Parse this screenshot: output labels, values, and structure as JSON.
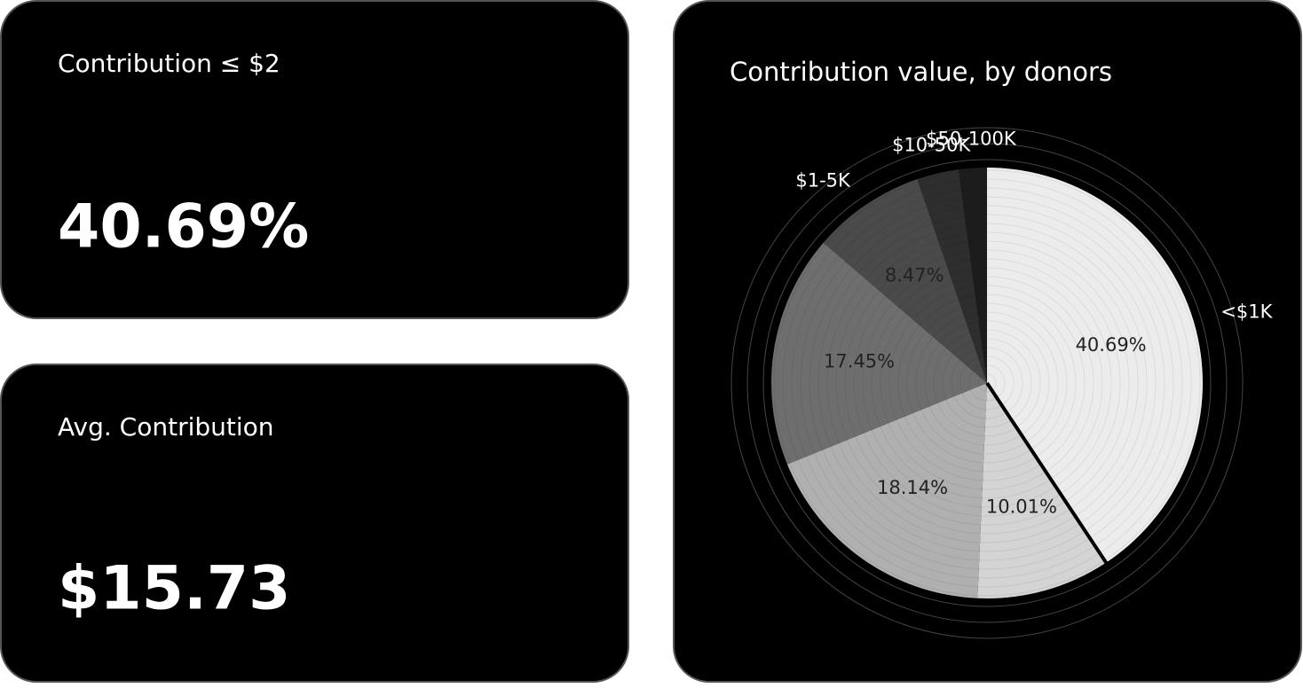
{
  "cards": [
    {
      "title": "Contribution ≤ $2",
      "value": "40.69%"
    },
    {
      "title": "Avg. Contribution",
      "value": "$15.73"
    }
  ],
  "chart_data": {
    "type": "pie",
    "title": "Contribution value, by donors",
    "categories": [
      "<$1K",
      null,
      null,
      null,
      "$1-5K",
      "$10-50K",
      "$50-100K"
    ],
    "values": [
      40.69,
      10.01,
      18.14,
      17.45,
      8.47,
      3.14,
      2.1
    ],
    "value_labels": [
      "40.69%",
      "10.01%",
      "18.14%",
      "17.45%",
      "8.47%",
      null,
      null
    ],
    "colors": [
      "#ececec",
      "#d4d4d4",
      "#b0b0b0",
      "#6e6e6e",
      "#4a4a4a",
      "#2e2e2e",
      "#1c1c1c"
    ]
  }
}
